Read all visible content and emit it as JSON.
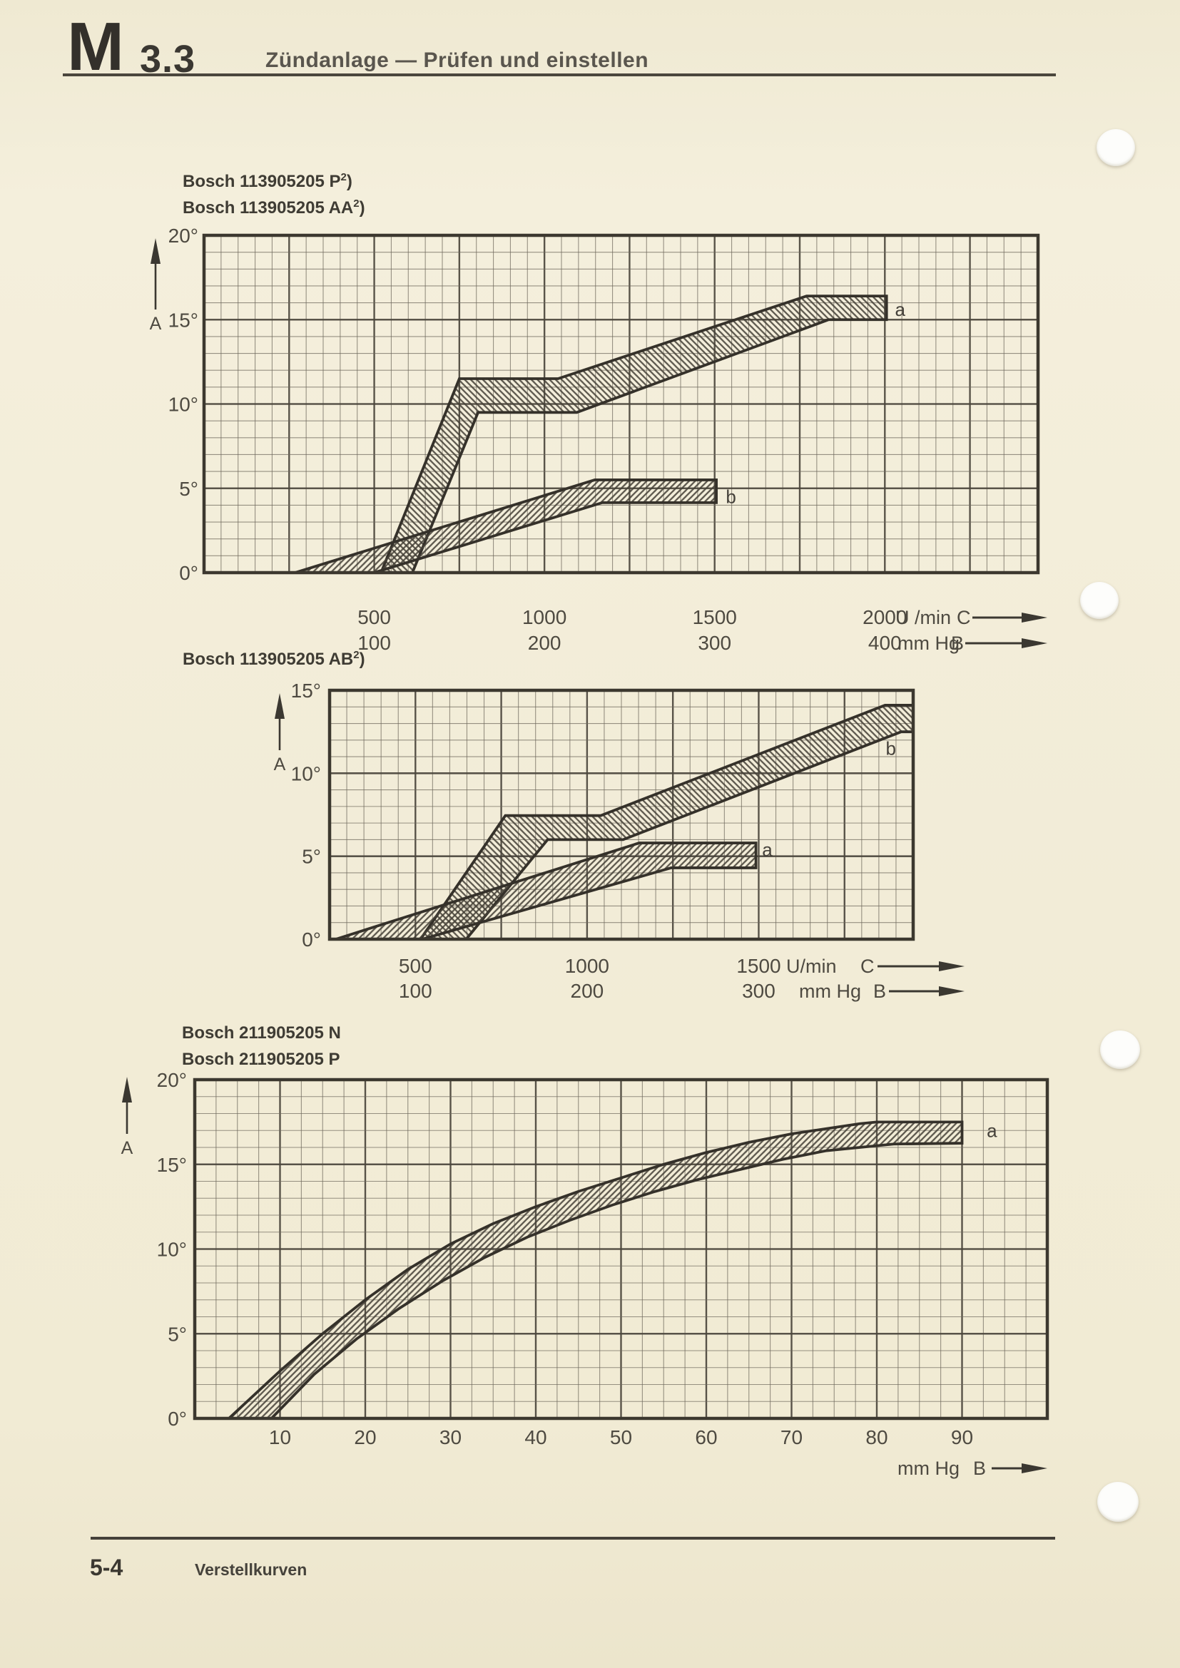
{
  "page": {
    "header": {
      "code_main": "M",
      "code_sub": "3.3",
      "title": "Zündanlage — Prüfen und einstellen"
    },
    "footer": {
      "page_number": "5-4",
      "caption": "Verstellkurven"
    },
    "colors": {
      "paper": "#f2ecd7",
      "ink": "#3b3831",
      "grid_minor": "#6f695d",
      "grid_major": "#4c473d",
      "band_outline": "#35312a",
      "hatch": "#474238"
    }
  },
  "chart_data": [
    {
      "id": "chart-1",
      "type": "area",
      "title_lines": [
        {
          "base": "Bosch 113905205 P",
          "sup": "2",
          "after": ")"
        },
        {
          "base": "Bosch 113905205 AA",
          "sup": "2",
          "after": ")"
        }
      ],
      "y_axis": {
        "arrow_label": "A",
        "min": 0,
        "max": 20,
        "minor_step": 1,
        "major_step": 5,
        "ticks": [
          {
            "v": 0,
            "text": "0°"
          },
          {
            "v": 5,
            "text": "5°"
          },
          {
            "v": 10,
            "text": "10°"
          },
          {
            "v": 15,
            "text": "15°"
          },
          {
            "v": 20,
            "text": "20°"
          }
        ]
      },
      "x_axis": {
        "min": 0,
        "max": 2450,
        "minor_step": 50,
        "major_step": 250,
        "rows": [
          {
            "unit": "U /min",
            "axis_letter": "C",
            "labels": [
              {
                "v": 500,
                "text": "500"
              },
              {
                "v": 1000,
                "text": "1000"
              },
              {
                "v": 1500,
                "text": "1500"
              },
              {
                "v": 2000,
                "text": "2000"
              }
            ]
          },
          {
            "unit": "mm Hg",
            "axis_letter": "B",
            "labels": [
              {
                "v": 500,
                "text": "100"
              },
              {
                "v": 1000,
                "text": "200"
              },
              {
                "v": 1500,
                "text": "300"
              },
              {
                "v": 2000,
                "text": "400"
              }
            ]
          }
        ]
      },
      "bands": [
        {
          "label": "a",
          "hatch": "back",
          "label_pos": [
            2045,
            15.6
          ],
          "upper": [
            [
              520,
              0
            ],
            [
              750,
              11.5
            ],
            [
              1040,
              11.5
            ],
            [
              1770,
              16.4
            ],
            [
              2005,
              16.4
            ]
          ],
          "lower": [
            [
              612,
              0
            ],
            [
              805,
              9.5
            ],
            [
              1095,
              9.5
            ],
            [
              1835,
              15.0
            ],
            [
              2005,
              15.0
            ]
          ]
        },
        {
          "label": "b",
          "hatch": "fwd",
          "label_pos": [
            1548,
            4.5
          ],
          "upper": [
            [
              268,
              0
            ],
            [
              1148,
              5.5
            ],
            [
              1505,
              5.5
            ]
          ],
          "lower": [
            [
              500,
              0
            ],
            [
              1170,
              4.15
            ],
            [
              1505,
              4.15
            ]
          ]
        }
      ]
    },
    {
      "id": "chart-2",
      "type": "area",
      "title_lines": [
        {
          "base": "Bosch 113905205 AB",
          "sup": "2",
          "after": ")"
        }
      ],
      "y_axis": {
        "arrow_label": "A",
        "min": 0,
        "max": 15,
        "minor_step": 1,
        "major_step": 5,
        "ticks": [
          {
            "v": 0,
            "text": "0°"
          },
          {
            "v": 5,
            "text": "5°"
          },
          {
            "v": 10,
            "text": "10°"
          },
          {
            "v": 15,
            "text": "15°"
          }
        ]
      },
      "x_axis": {
        "min": 250,
        "max": 1950,
        "minor_step": 50,
        "major_step": 250,
        "rows": [
          {
            "unit": "U/min",
            "axis_letter": "C",
            "labels": [
              {
                "v": 500,
                "text": "500"
              },
              {
                "v": 1000,
                "text": "1000"
              },
              {
                "v": 1500,
                "text": "1500"
              }
            ]
          },
          {
            "unit": "mm Hg",
            "axis_letter": "B",
            "labels": [
              {
                "v": 500,
                "text": "100"
              },
              {
                "v": 1000,
                "text": "200"
              },
              {
                "v": 1500,
                "text": "300"
              }
            ]
          }
        ]
      },
      "bands": [
        {
          "label": "b",
          "hatch": "back",
          "label_pos": [
            1885,
            11.5
          ],
          "upper": [
            [
              515,
              0
            ],
            [
              762,
              7.45
            ],
            [
              1040,
              7.45
            ],
            [
              1868,
              14.1
            ],
            [
              1950,
              14.1
            ]
          ],
          "lower": [
            [
              648,
              0
            ],
            [
              885,
              6.0
            ],
            [
              1105,
              6.0
            ],
            [
              1915,
              12.5
            ],
            [
              1950,
              12.5
            ]
          ]
        },
        {
          "label": "a",
          "hatch": "fwd",
          "label_pos": [
            1525,
            5.4
          ],
          "upper": [
            [
              268,
              0
            ],
            [
              1152,
              5.8
            ],
            [
              1492,
              5.8
            ]
          ],
          "lower": [
            [
              520,
              0
            ],
            [
              1245,
              4.3
            ],
            [
              1492,
              4.3
            ]
          ]
        }
      ]
    },
    {
      "id": "chart-3",
      "type": "area",
      "title_lines": [
        {
          "base": "Bosch 211905205 N",
          "sup": "",
          "after": ""
        },
        {
          "base": "Bosch 211905205 P",
          "sup": "",
          "after": ""
        }
      ],
      "y_axis": {
        "arrow_label": "A",
        "min": 0,
        "max": 20,
        "minor_step": 1,
        "major_step": 5,
        "ticks": [
          {
            "v": 0,
            "text": "0°"
          },
          {
            "v": 5,
            "text": "5°"
          },
          {
            "v": 10,
            "text": "10°"
          },
          {
            "v": 15,
            "text": "15°"
          },
          {
            "v": 20,
            "text": "20°"
          }
        ]
      },
      "x_axis": {
        "min": 0,
        "max": 100,
        "minor_step": 2.5,
        "major_step": 10,
        "rows": [
          {
            "unit": "",
            "axis_letter": "",
            "labels": [
              {
                "v": 10,
                "text": "10"
              },
              {
                "v": 20,
                "text": "20"
              },
              {
                "v": 30,
                "text": "30"
              },
              {
                "v": 40,
                "text": "40"
              },
              {
                "v": 50,
                "text": "50"
              },
              {
                "v": 60,
                "text": "60"
              },
              {
                "v": 70,
                "text": "70"
              },
              {
                "v": 80,
                "text": "80"
              },
              {
                "v": 90,
                "text": "90"
              }
            ]
          }
        ],
        "detached_unit": {
          "unit": "mm Hg",
          "axis_letter": "B"
        }
      },
      "bands": [
        {
          "label": "a",
          "hatch": "fwd",
          "label_pos": [
            93.5,
            17.0
          ],
          "upper": [
            [
              4,
              0
            ],
            [
              10,
              2.8
            ],
            [
              15,
              5.0
            ],
            [
              20,
              7.0
            ],
            [
              25,
              8.8
            ],
            [
              30,
              10.3
            ],
            [
              35,
              11.5
            ],
            [
              40,
              12.5
            ],
            [
              45,
              13.4
            ],
            [
              50,
              14.2
            ],
            [
              55,
              15.0
            ],
            [
              60,
              15.7
            ],
            [
              65,
              16.3
            ],
            [
              70,
              16.8
            ],
            [
              74,
              17.1
            ],
            [
              78,
              17.4
            ],
            [
              80,
              17.5
            ],
            [
              90,
              17.5
            ]
          ],
          "lower": [
            [
              9,
              0
            ],
            [
              14,
              2.6
            ],
            [
              19,
              4.7
            ],
            [
              24,
              6.5
            ],
            [
              29,
              8.1
            ],
            [
              34,
              9.5
            ],
            [
              39,
              10.7
            ],
            [
              44,
              11.7
            ],
            [
              49,
              12.6
            ],
            [
              54,
              13.4
            ],
            [
              59,
              14.1
            ],
            [
              64,
              14.7
            ],
            [
              69,
              15.3
            ],
            [
              74,
              15.8
            ],
            [
              78,
              16.0
            ],
            [
              82,
              16.2
            ],
            [
              90,
              16.25
            ]
          ]
        }
      ]
    }
  ]
}
